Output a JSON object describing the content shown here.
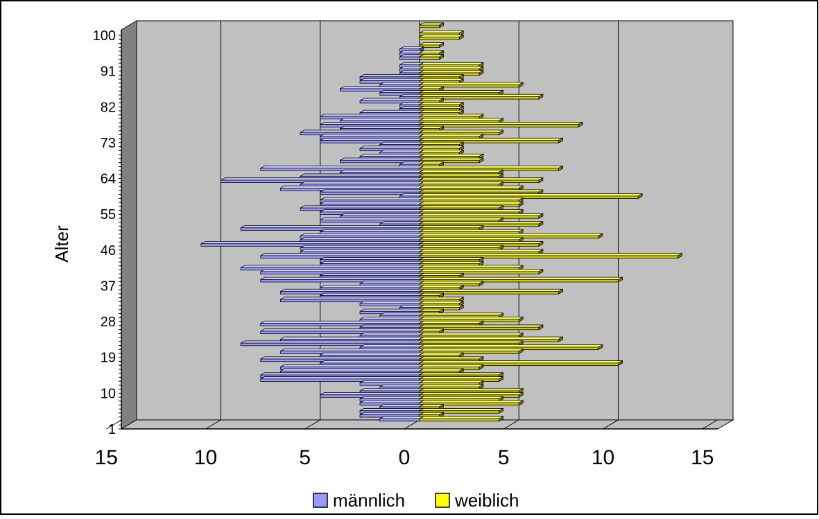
{
  "chart_data": {
    "type": "bar",
    "orientation": "horizontal",
    "style": "3d-population-pyramid",
    "ylabel": "Alter",
    "xlabel": "",
    "x_ticks": [
      "15",
      "10",
      "5",
      "0",
      "5",
      "10",
      "15"
    ],
    "y_ticks": [
      "1",
      "10",
      "19",
      "28",
      "37",
      "46",
      "55",
      "64",
      "73",
      "82",
      "91",
      "100"
    ],
    "xlim": [
      -15,
      15
    ],
    "ylim": [
      1,
      100
    ],
    "grid": "vertical",
    "legend_position": "bottom",
    "series": [
      {
        "name": "männlich",
        "color": "#9999ff",
        "values": [
          2,
          3,
          3,
          2,
          3,
          3,
          5,
          3,
          2,
          3,
          8,
          8,
          7,
          7,
          5,
          8,
          5,
          7,
          3,
          9,
          7,
          3,
          8,
          3,
          8,
          3,
          2,
          3,
          1,
          3,
          7,
          5,
          7,
          5,
          3,
          8,
          5,
          8,
          9,
          5,
          5,
          8,
          6,
          6,
          11,
          6,
          6,
          5,
          9,
          2,
          5,
          4,
          5,
          6,
          5,
          5,
          1,
          5,
          7,
          6,
          10,
          6,
          4,
          8,
          1,
          4,
          3,
          2,
          3,
          2,
          5,
          5,
          6,
          4,
          5,
          4,
          5,
          3,
          1,
          1,
          3,
          1,
          2,
          4,
          2,
          3,
          3,
          1,
          1,
          1,
          0,
          1,
          1,
          1,
          0,
          0,
          0,
          0,
          0,
          0
        ]
      },
      {
        "name": "weiblich",
        "color": "#ffff00",
        "values": [
          4,
          1,
          4,
          1,
          5,
          4,
          5,
          5,
          3,
          3,
          4,
          4,
          2,
          3,
          10,
          3,
          2,
          5,
          9,
          5,
          7,
          5,
          1,
          6,
          3,
          5,
          4,
          1,
          2,
          2,
          2,
          1,
          7,
          2,
          3,
          10,
          2,
          6,
          5,
          3,
          3,
          13,
          6,
          4,
          6,
          5,
          9,
          5,
          3,
          6,
          4,
          6,
          5,
          4,
          5,
          5,
          11,
          6,
          5,
          4,
          6,
          4,
          4,
          7,
          1,
          3,
          3,
          2,
          2,
          2,
          7,
          3,
          4,
          1,
          8,
          4,
          3,
          2,
          2,
          2,
          1,
          6,
          4,
          1,
          5,
          2,
          2,
          3,
          3,
          3,
          0,
          1,
          1,
          0,
          1,
          0,
          2,
          2,
          0,
          1
        ]
      }
    ]
  },
  "colors": {
    "plot_back": "#c0c0c0",
    "gridline": "#000000",
    "male_fill": "#9999ff",
    "male_top": "#ccccff",
    "male_shadow": "#5a5aa8",
    "female_fill": "#cccc00",
    "female_top": "#ffff66",
    "female_shadow": "#80800a"
  }
}
